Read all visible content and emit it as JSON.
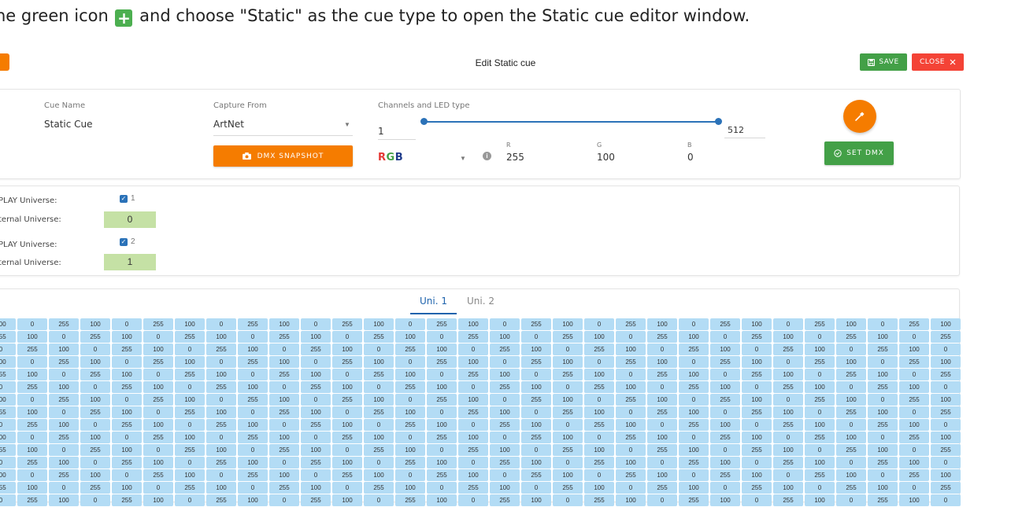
{
  "instruction": {
    "before": "he green icon",
    "icon": "plus-icon",
    "after": "and choose \"Static\" as the cue type to open the Static cue editor window."
  },
  "window": {
    "title": "Edit Static cue",
    "save_label": "SAVE",
    "close_label": "CLOSE",
    "save_color": "#43a047",
    "close_color": "#f44336",
    "accent_color": "#f57c00"
  },
  "cue": {
    "name_label": "Cue Name",
    "name_value": "Static Cue",
    "capture_label": "Capture From",
    "capture_value": "ArtNet",
    "snapshot_label": "DMX SNAPSHOT",
    "channels_label": "Channels and LED type",
    "channel_min": "1",
    "channel_max": "512",
    "led_type": {
      "r": "R",
      "g": "G",
      "b": "B"
    },
    "r_label": "R",
    "r_value": "255",
    "g_label": "G",
    "g_value": "100",
    "b_label": "B",
    "b_value": "0",
    "set_dmx_label": "SET DMX"
  },
  "universes": [
    {
      "play_label": "PLAY Universe:",
      "checked": true,
      "number": "1",
      "external_label": "ternal Universe:",
      "external_value": "0"
    },
    {
      "play_label": "PLAY Universe:",
      "checked": true,
      "number": "2",
      "external_label": "ternal Universe:",
      "external_value": "1"
    }
  ],
  "tabs": [
    {
      "label": "Uni. 1",
      "active": true
    },
    {
      "label": "Uni. 2",
      "active": false
    }
  ],
  "dmx_grid": {
    "rows": 15,
    "columns": 31,
    "pattern": [
      "100",
      "0",
      "255"
    ],
    "cell_color": "#b3dcf5"
  }
}
